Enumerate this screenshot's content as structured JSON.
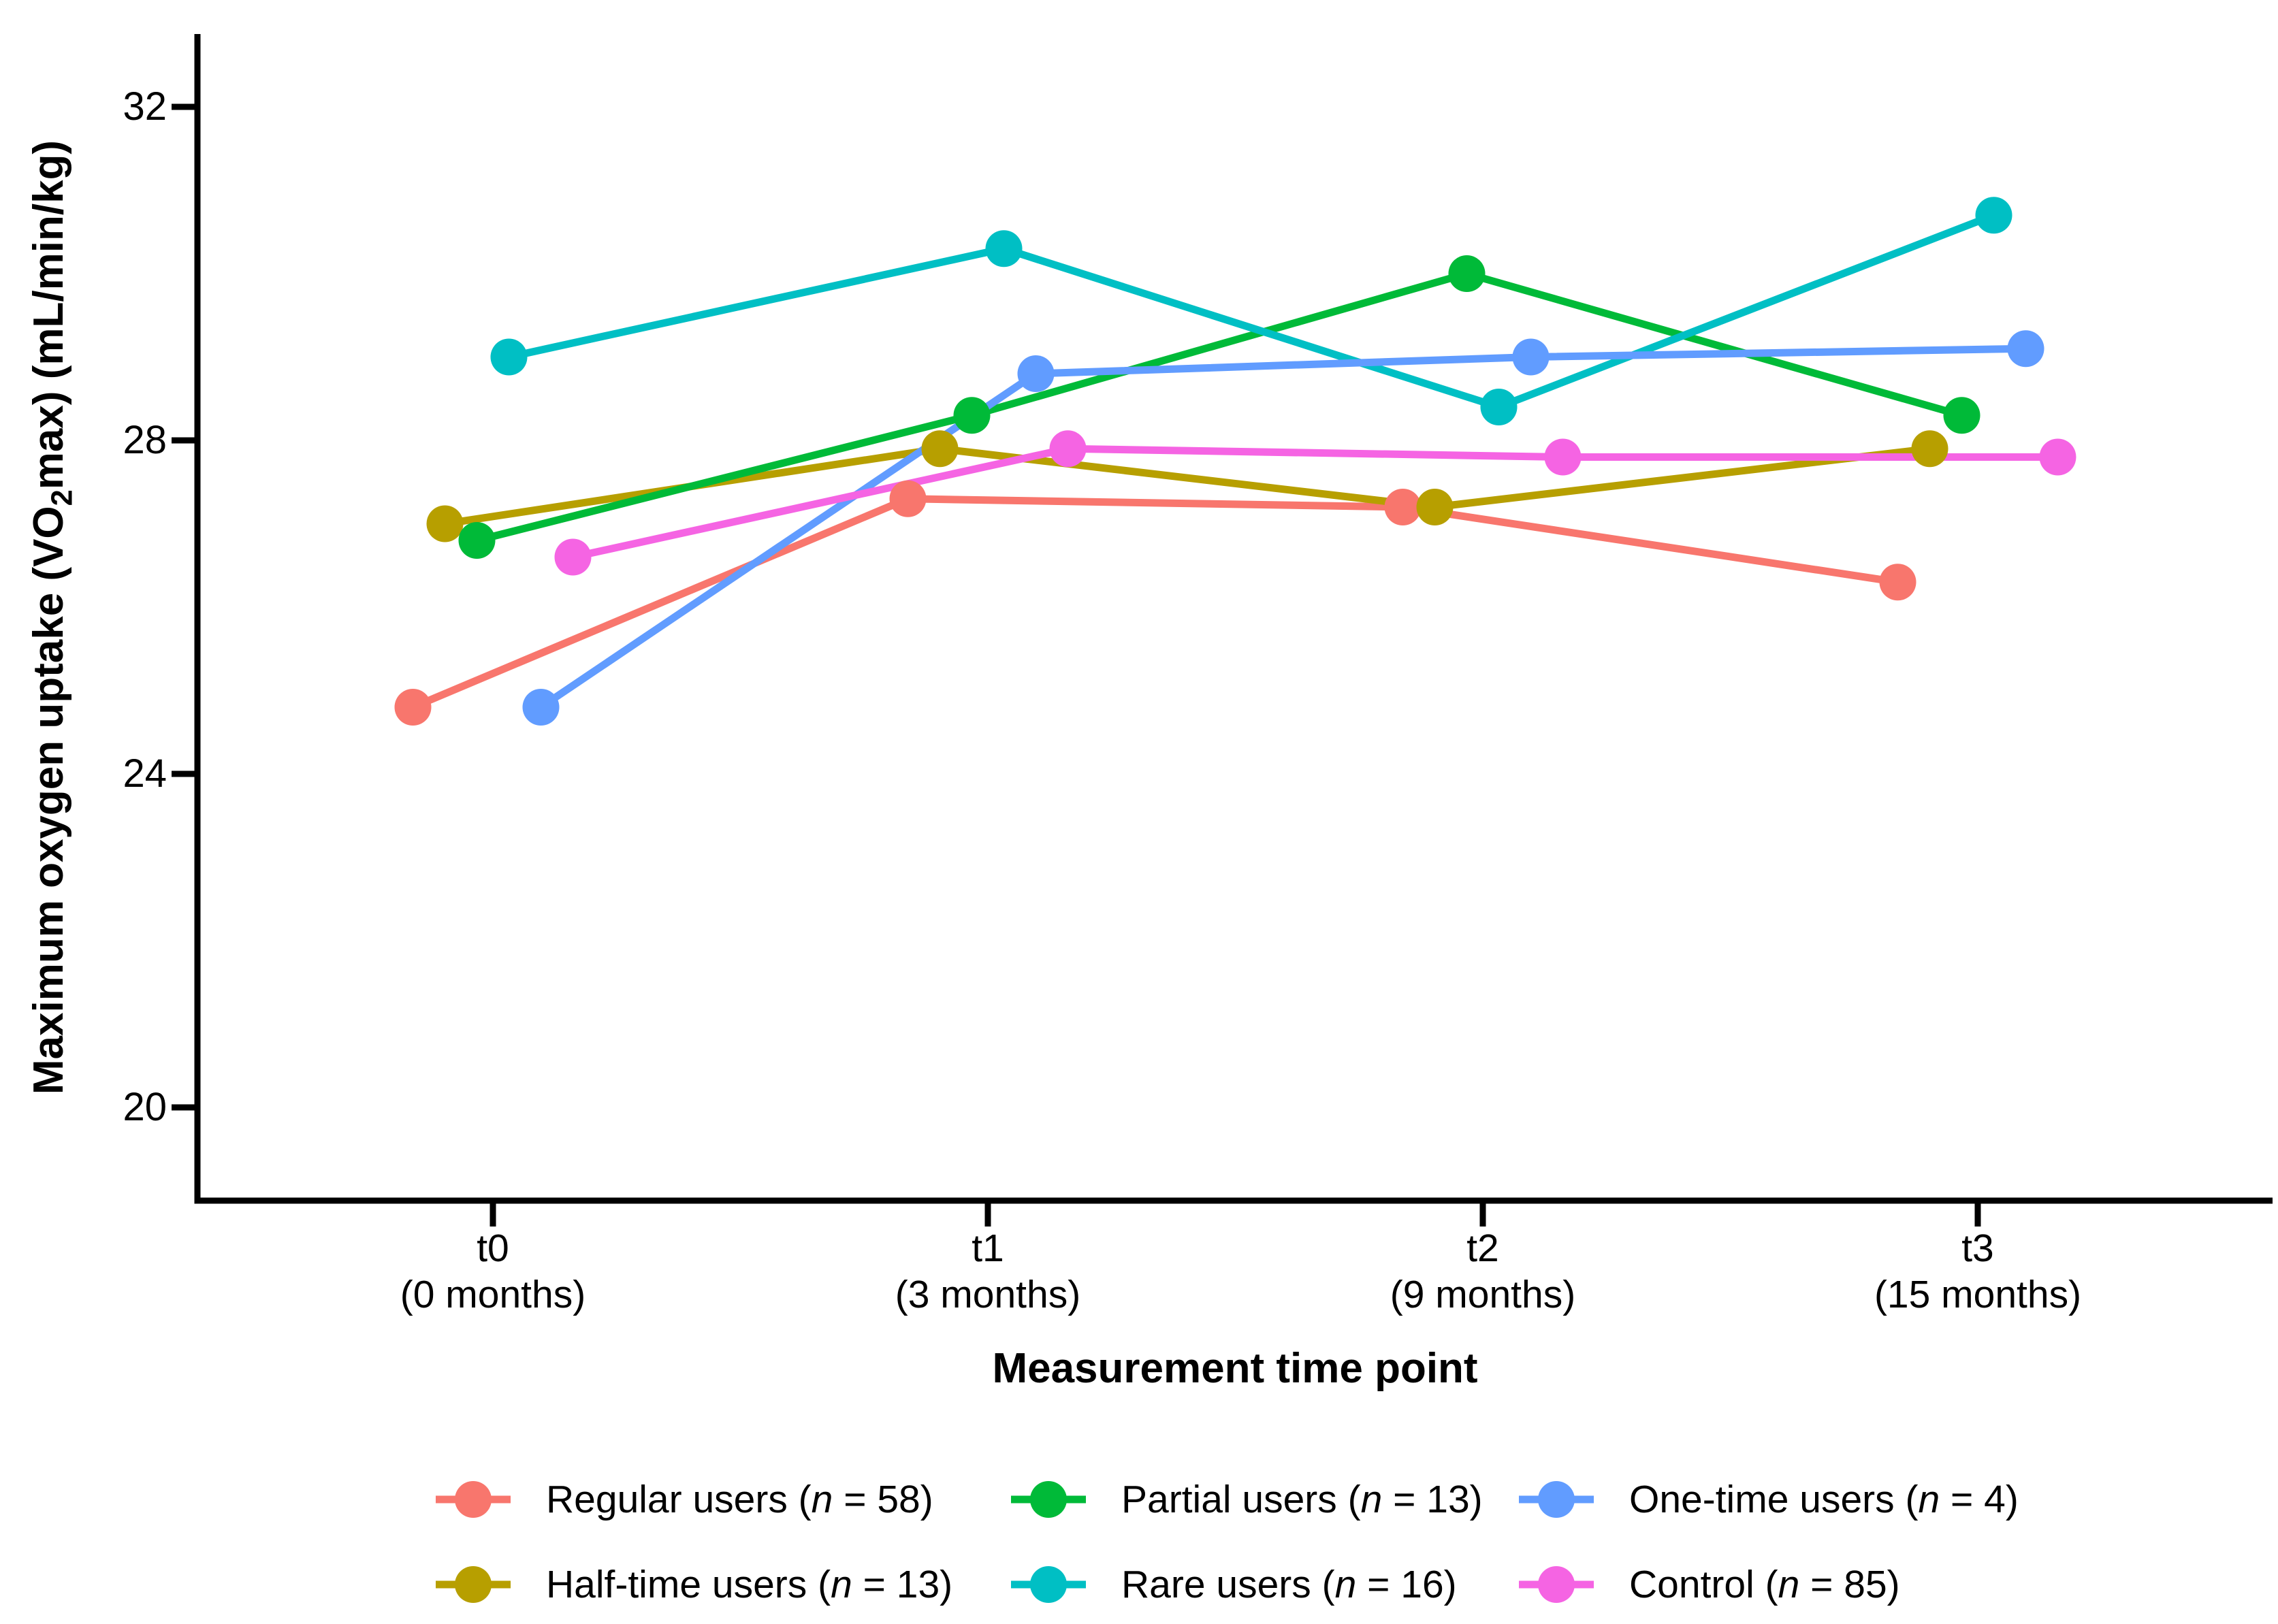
{
  "figure": {
    "background": "#FFFFFF",
    "axis_color": "#000000",
    "y_axis": {
      "title": "Maximum oxygen uptake (VO2max) (mL/min/kg)",
      "tick_labels": [
        "32",
        "28",
        "24",
        "20"
      ]
    },
    "x_axis": {
      "title": "Measurement time point",
      "ticks": [
        {
          "label": "t0",
          "sublabel": "(0 months)"
        },
        {
          "label": "t1",
          "sublabel": "(3 months)"
        },
        {
          "label": "t2",
          "sublabel": "(9 months)"
        },
        {
          "label": "t3",
          "sublabel": "(15 months)"
        }
      ]
    },
    "legend": {
      "rows": [
        [
          0,
          2,
          4
        ],
        [
          1,
          3,
          5
        ]
      ]
    }
  },
  "chart_data": {
    "type": "line",
    "title": "",
    "xlabel": "Measurement time point",
    "ylabel": "Maximum oxygen uptake (VO2max) (mL/min/kg)",
    "categories": [
      "t0 (0 months)",
      "t1 (3 months)",
      "t2 (9 months)",
      "t3 (15 months)"
    ],
    "yticks": [
      32,
      28,
      24,
      20
    ],
    "ylim": [
      18.9,
      32.9
    ],
    "grid": false,
    "legend_position": "bottom",
    "point_markers": true,
    "series": [
      {
        "name": "Regular users (n = 58)",
        "color": "#F8766D",
        "values": [
          24.8,
          27.3,
          27.2,
          26.3
        ]
      },
      {
        "name": "Half-time users (n = 13)",
        "color": "#B79F00",
        "values": [
          27.0,
          27.9,
          27.2,
          27.9
        ]
      },
      {
        "name": "Partial users (n = 13)",
        "color": "#00BA38",
        "values": [
          26.8,
          28.3,
          30.0,
          28.3
        ]
      },
      {
        "name": "Rare users (n = 16)",
        "color": "#00BFC4",
        "values": [
          29.0,
          30.3,
          28.4,
          30.7
        ]
      },
      {
        "name": "One-time users (n = 4)",
        "color": "#619CFF",
        "values": [
          24.8,
          28.8,
          29.0,
          29.1
        ]
      },
      {
        "name": "Control (n = 85)",
        "color": "#F564E3",
        "values": [
          26.6,
          27.9,
          27.8,
          27.8
        ]
      }
    ]
  }
}
